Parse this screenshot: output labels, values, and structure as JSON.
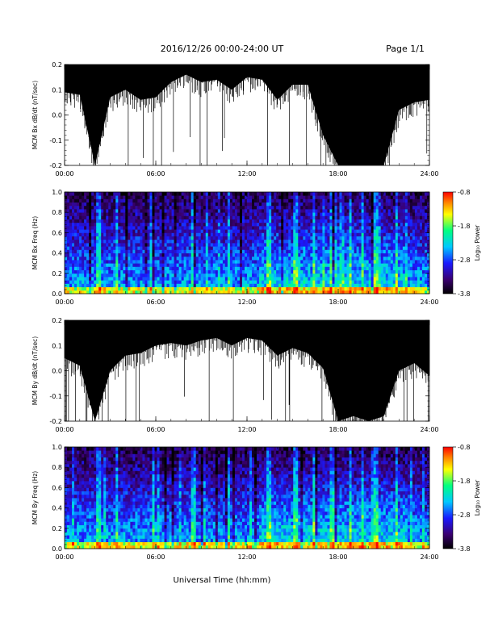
{
  "header": {
    "date_range": "2016/12/26  00:00-24:00 UT",
    "page": "Page 1/1"
  },
  "x_axis_label": "Universal Time (hh:mm)",
  "colorbar_label": "Log₁₀ Power",
  "colors": {
    "line": "#000000",
    "colormap": [
      "#000000",
      "#3a0070",
      "#1a1aff",
      "#00c8ff",
      "#00ff80",
      "#ffff00",
      "#ff7f00",
      "#ff0000"
    ]
  },
  "chart_data": [
    {
      "type": "line",
      "ylabel": "MCM Bx dB/dt (nT/sec)",
      "x_ticks": [
        "00:00",
        "06:00",
        "12:00",
        "18:00",
        "24:00"
      ],
      "xlim": [
        0,
        24
      ],
      "ylim": [
        -0.2,
        0.2
      ],
      "y_ticks": [
        "0.2",
        "0.1",
        "0.0",
        "-0.1",
        "-0.2"
      ],
      "series": [
        {
          "x": [
            0,
            1,
            2,
            3,
            4,
            5,
            6,
            7,
            8,
            9,
            10,
            11,
            12,
            13,
            14,
            15,
            16,
            17,
            18,
            19,
            20,
            21,
            22,
            23,
            24
          ],
          "upper": [
            0.2,
            0.2,
            0.2,
            0.2,
            0.2,
            0.2,
            0.2,
            0.2,
            0.2,
            0.2,
            0.2,
            0.2,
            0.2,
            0.2,
            0.2,
            0.2,
            0.2,
            0.2,
            0.2,
            0.2,
            0.2,
            0.2,
            0.2,
            0.2,
            0.2
          ],
          "lower": [
            0.09,
            0.08,
            -0.2,
            0.07,
            0.1,
            0.06,
            0.07,
            0.13,
            0.16,
            0.13,
            0.14,
            0.1,
            0.15,
            0.14,
            0.06,
            0.12,
            0.12,
            -0.08,
            -0.2,
            -0.2,
            -0.2,
            -0.2,
            0.02,
            0.05,
            0.06
          ]
        }
      ]
    },
    {
      "type": "heatmap",
      "ylabel": "MCM Bx Freq (Hz)",
      "x_ticks": [
        "00:00",
        "06:00",
        "12:00",
        "18:00",
        "24:00"
      ],
      "xlim": [
        0,
        24
      ],
      "ylim": [
        0,
        1.0
      ],
      "y_ticks": [
        "1.0",
        "0.8",
        "0.6",
        "0.4",
        "0.2",
        "0.0"
      ],
      "color_range": [
        -3.8,
        -0.8
      ],
      "colorbar_ticks": [
        "-0.8",
        "-1.8",
        "-2.8",
        "-3.8"
      ],
      "bright_times": [
        2.2,
        3.4,
        5.8,
        8.5,
        10.8,
        13.4,
        15.2,
        16.4,
        17.6,
        18.8,
        19.6,
        20.5,
        21.8
      ]
    },
    {
      "type": "line",
      "ylabel": "MCM By dB/dt (nT/sec)",
      "x_ticks": [
        "00:00",
        "06:00",
        "12:00",
        "18:00",
        "24:00"
      ],
      "xlim": [
        0,
        24
      ],
      "ylim": [
        -0.2,
        0.2
      ],
      "y_ticks": [
        "0.2",
        "0.1",
        "0.0",
        "-0.1",
        "-0.2"
      ],
      "series": [
        {
          "x": [
            0,
            1,
            2,
            3,
            4,
            5,
            6,
            7,
            8,
            9,
            10,
            11,
            12,
            13,
            14,
            15,
            16,
            17,
            18,
            19,
            20,
            21,
            22,
            23,
            24
          ],
          "upper": [
            0.2,
            0.2,
            0.2,
            0.2,
            0.2,
            0.2,
            0.2,
            0.2,
            0.2,
            0.2,
            0.2,
            0.2,
            0.2,
            0.2,
            0.2,
            0.2,
            0.2,
            0.2,
            0.2,
            0.2,
            0.2,
            0.2,
            0.2,
            0.2,
            0.2
          ],
          "lower": [
            0.05,
            0.02,
            -0.2,
            0.0,
            0.06,
            0.07,
            0.1,
            0.11,
            0.1,
            0.12,
            0.13,
            0.1,
            0.13,
            0.12,
            0.06,
            0.09,
            0.07,
            0.01,
            -0.2,
            -0.18,
            -0.2,
            -0.18,
            0.0,
            0.03,
            -0.02
          ]
        }
      ]
    },
    {
      "type": "heatmap",
      "ylabel": "MCM By Freq (Hz)",
      "x_ticks": [
        "00:00",
        "06:00",
        "12:00",
        "18:00",
        "24:00"
      ],
      "xlim": [
        0,
        24
      ],
      "ylim": [
        0,
        1.0
      ],
      "y_ticks": [
        "1.0",
        "0.8",
        "0.6",
        "0.4",
        "0.2",
        "0.0"
      ],
      "color_range": [
        -3.8,
        -0.8
      ],
      "colorbar_ticks": [
        "-0.8",
        "-1.8",
        "-2.8",
        "-3.8"
      ],
      "bright_times": [
        2.2,
        3.4,
        5.8,
        8.5,
        10.8,
        13.4,
        15.2,
        16.4,
        17.6,
        18.8,
        19.6,
        20.5,
        21.8
      ]
    }
  ]
}
